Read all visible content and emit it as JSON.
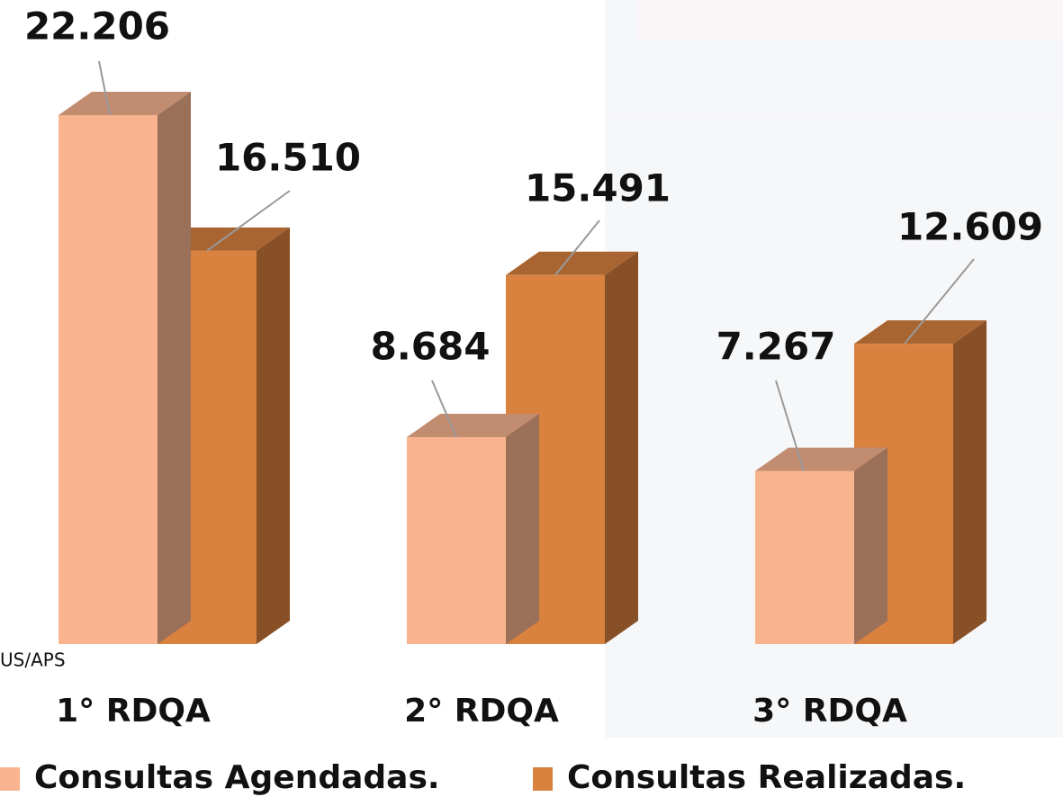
{
  "chart_data": {
    "type": "bar3d",
    "categories": [
      "1° RDQA",
      "2° RDQA",
      "3° RDQA"
    ],
    "series": [
      {
        "name": "Consultas Agendadas.",
        "color": "#F9B48F",
        "values": [
          22206,
          8684,
          7267
        ],
        "value_labels": [
          "22.206",
          "8.684",
          "7.267"
        ]
      },
      {
        "name": "Consultas Realizadas.",
        "color": "#D9813F",
        "values": [
          16510,
          15491,
          12609
        ],
        "value_labels": [
          "16.510",
          "15.491",
          "12.609"
        ]
      }
    ],
    "note": "US/APS"
  }
}
